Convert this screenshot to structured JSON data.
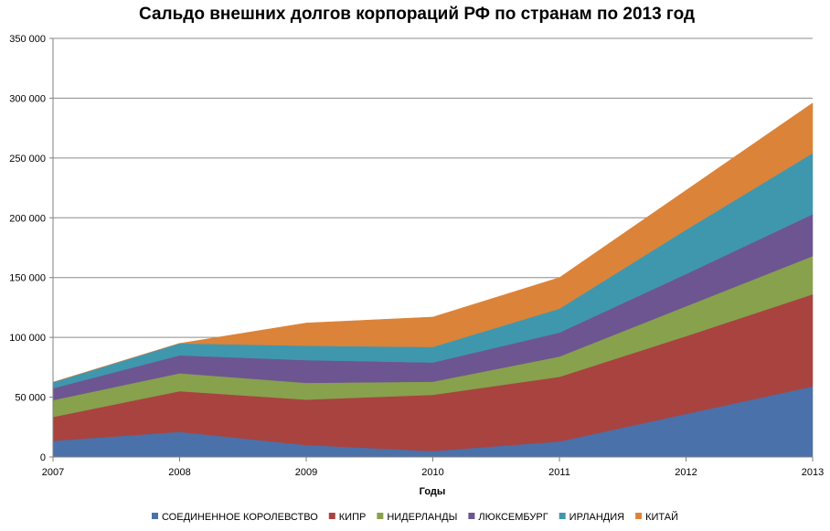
{
  "chart_data": {
    "type": "area",
    "stacked": true,
    "title": "Сальдо внешних долгов корпораций РФ по странам по 2013 год",
    "xlabel": "Годы",
    "ylabel": "",
    "x": [
      "2007",
      "2008",
      "2009",
      "2010",
      "2011",
      "2012",
      "2013"
    ],
    "ylim": [
      0,
      350000
    ],
    "yticks": [
      0,
      50000,
      100000,
      150000,
      200000,
      250000,
      300000,
      350000
    ],
    "ytick_labels": [
      "0",
      "50 000",
      "100 000",
      "150 000",
      "200 000",
      "250 000",
      "300 000",
      "350 000"
    ],
    "grid": true,
    "legend_position": "bottom",
    "series": [
      {
        "name": "СОЕДИНЕННОЕ КОРОЛЕВСТВО",
        "color": "#4a71a9",
        "values": [
          13500,
          21000,
          10000,
          5000,
          13000,
          36000,
          59000
        ]
      },
      {
        "name": "КИПР",
        "color": "#a84340",
        "values": [
          20000,
          34000,
          38000,
          47000,
          54000,
          65000,
          77000
        ]
      },
      {
        "name": "НИДЕРЛАНДЫ",
        "color": "#88a14c",
        "values": [
          14000,
          15000,
          14000,
          11000,
          17000,
          25000,
          32000
        ]
      },
      {
        "name": "ЛЮКСЕМБУРГ",
        "color": "#6d5591",
        "values": [
          10000,
          15000,
          19000,
          16000,
          20000,
          27000,
          35000
        ]
      },
      {
        "name": "ИРЛАНДИЯ",
        "color": "#3f97ae",
        "values": [
          5000,
          10000,
          12000,
          13000,
          20000,
          37000,
          51000
        ]
      },
      {
        "name": "КИТАЙ",
        "color": "#db8339",
        "values": [
          0,
          0,
          19000,
          25000,
          26000,
          33000,
          42000
        ]
      }
    ]
  }
}
